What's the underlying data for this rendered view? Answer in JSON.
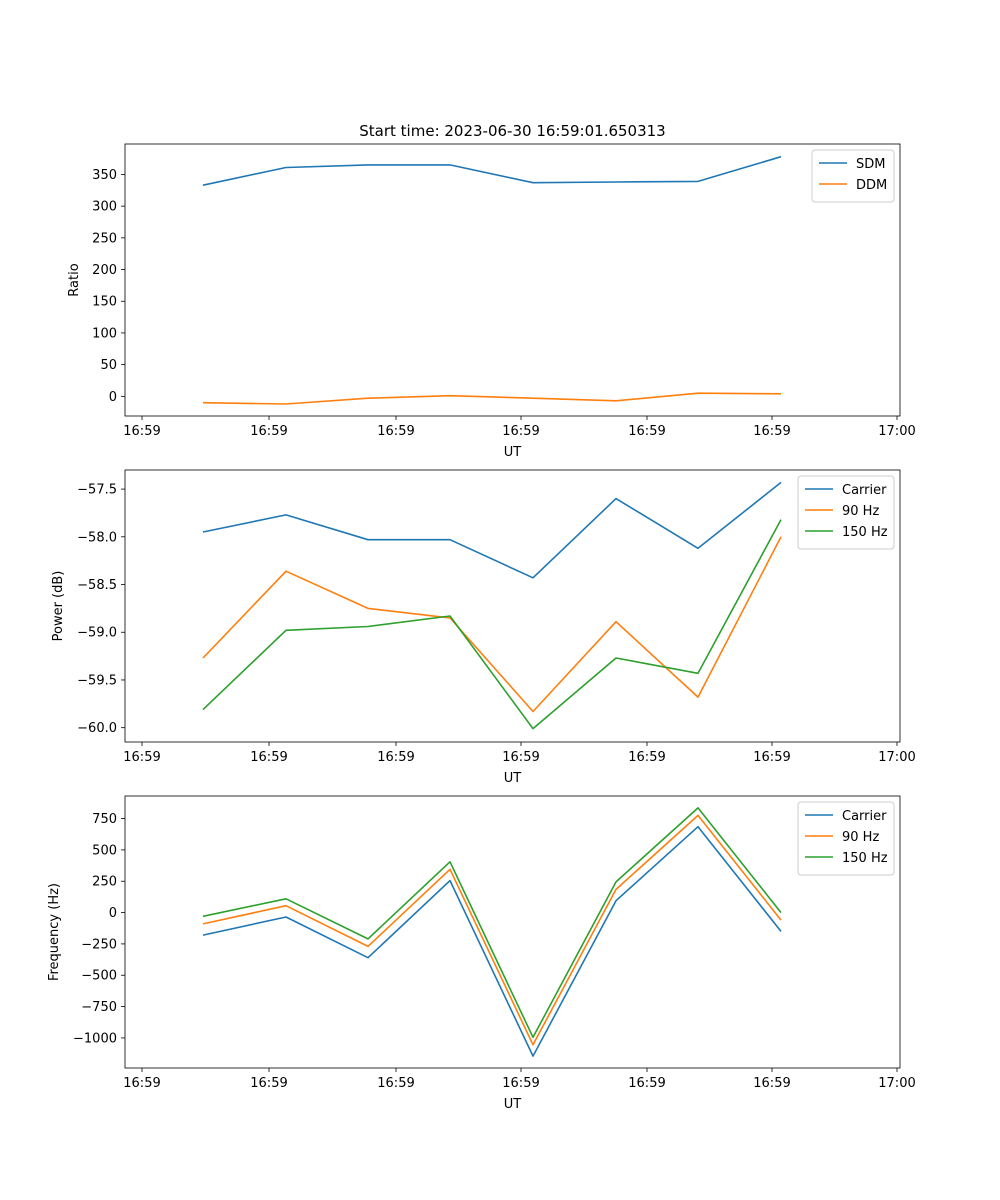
{
  "figure": {
    "title": "Start time: 2023-06-30 16:59:01.650313"
  },
  "chart_data": [
    {
      "type": "line",
      "title": "Start time: 2023-06-30 16:59:01.650313",
      "xlabel": "UT",
      "ylabel": "Ratio",
      "x_tick_labels": [
        "16:59",
        "16:59",
        "16:59",
        "16:59",
        "16:59",
        "16:59",
        "17:00"
      ],
      "y_ticks": [
        0,
        50,
        100,
        150,
        200,
        250,
        300,
        350
      ],
      "ylim": [
        -31,
        398
      ],
      "grid": false,
      "legend_position": "upper right",
      "series": [
        {
          "name": "SDM",
          "color": "#1f77b4",
          "values": [
            333,
            361,
            365,
            365,
            337,
            338,
            339,
            378
          ]
        },
        {
          "name": "DDM",
          "color": "#ff7f0e",
          "values": [
            -10,
            -12,
            -3,
            1,
            -3,
            -7,
            5,
            4
          ]
        }
      ]
    },
    {
      "type": "line",
      "xlabel": "UT",
      "ylabel": "Power (dB)",
      "x_tick_labels": [
        "16:59",
        "16:59",
        "16:59",
        "16:59",
        "16:59",
        "16:59",
        "17:00"
      ],
      "y_ticks": [
        -60.0,
        -59.5,
        -59.0,
        -58.5,
        -58.0,
        -57.5
      ],
      "y_tick_labels": [
        "−60.0",
        "−59.5",
        "−59.0",
        "−58.5",
        "−58.0",
        "−57.5"
      ],
      "ylim": [
        -60.15,
        -57.3
      ],
      "grid": false,
      "legend_position": "upper right",
      "series": [
        {
          "name": "Carrier",
          "color": "#1f77b4",
          "values": [
            -57.95,
            -57.77,
            -58.03,
            -58.03,
            -58.43,
            -57.6,
            -58.12,
            -57.43
          ]
        },
        {
          "name": "90 Hz",
          "color": "#ff7f0e",
          "values": [
            -59.27,
            -58.36,
            -58.75,
            -58.85,
            -59.83,
            -58.89,
            -59.68,
            -58.0
          ]
        },
        {
          "name": "150 Hz",
          "color": "#2ca02c",
          "values": [
            -59.81,
            -58.98,
            -58.94,
            -58.83,
            -60.01,
            -59.27,
            -59.43,
            -57.82
          ]
        }
      ]
    },
    {
      "type": "line",
      "xlabel": "UT",
      "ylabel": "Frequency (Hz)",
      "x_tick_labels": [
        "16:59",
        "16:59",
        "16:59",
        "16:59",
        "16:59",
        "16:59",
        "17:00"
      ],
      "y_ticks": [
        -1000,
        -750,
        -500,
        -250,
        0,
        250,
        500,
        750
      ],
      "y_tick_labels": [
        "−1000",
        "−750",
        "−500",
        "−250",
        "0",
        "250",
        "500",
        "750"
      ],
      "ylim": [
        -1240,
        930
      ],
      "grid": false,
      "legend_position": "upper right",
      "series": [
        {
          "name": "Carrier",
          "color": "#1f77b4",
          "values": [
            -180,
            -35,
            -360,
            255,
            -1145,
            95,
            685,
            -150
          ]
        },
        {
          "name": "90 Hz",
          "color": "#ff7f0e",
          "values": [
            -90,
            55,
            -270,
            345,
            -1055,
            185,
            775,
            -60
          ]
        },
        {
          "name": "150 Hz",
          "color": "#2ca02c",
          "values": [
            -30,
            110,
            -210,
            405,
            -995,
            245,
            835,
            0
          ]
        }
      ]
    }
  ]
}
